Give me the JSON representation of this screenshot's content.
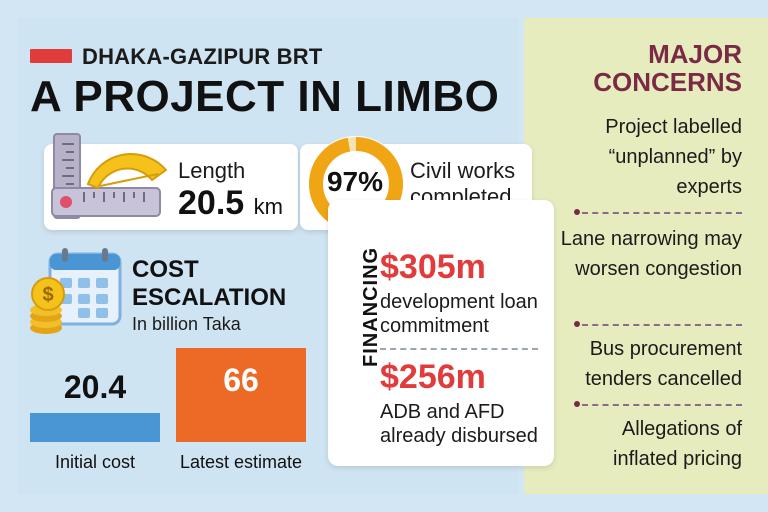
{
  "header": {
    "kicker": "DHAKA-GAZIPUR BRT",
    "headline": "A PROJECT IN LIMBO"
  },
  "length": {
    "label": "Length",
    "value": "20.5",
    "unit": "km"
  },
  "civil_works": {
    "percent_label": "97%",
    "percent_value": 97,
    "text": "Civil works completed"
  },
  "cost": {
    "title": "COST ESCALATION",
    "subtitle": "In billion Taka",
    "initial_value": "20.4",
    "latest_value": "66",
    "initial_label": "Initial cost",
    "latest_label": "Latest estimate"
  },
  "chart_data": {
    "type": "bar",
    "categories": [
      "Initial cost",
      "Latest estimate"
    ],
    "values": [
      20.4,
      66
    ],
    "title": "COST ESCALATION",
    "subtitle": "In billion Taka",
    "colors": [
      "#4a96d4",
      "#ec6a26"
    ]
  },
  "financing": {
    "label": "FINANCING",
    "items": [
      {
        "amount": "$305m",
        "desc": "development loan commitment"
      },
      {
        "amount": "$256m",
        "desc": "ADB and AFD already disbursed"
      }
    ]
  },
  "concerns": {
    "title": "MAJOR CONCERNS",
    "items": [
      "Project labelled “unplanned” by experts",
      "Lane narrowing may worsen congestion",
      "Bus procurement tenders cancelled",
      "Allegations of inflated pricing"
    ]
  },
  "colors": {
    "left_bg": "#cfe4f2",
    "right_bg": "#e7ecbf",
    "accent_red": "#e23b3b",
    "accent_orange": "#ec6a26",
    "accent_blue": "#4a96d4",
    "concerns_title": "#7a2a45",
    "donut": "#f0a515"
  },
  "icons": {
    "length_icon": "ruler-protractor-icon",
    "cost_icon": "calendar-coins-icon"
  }
}
